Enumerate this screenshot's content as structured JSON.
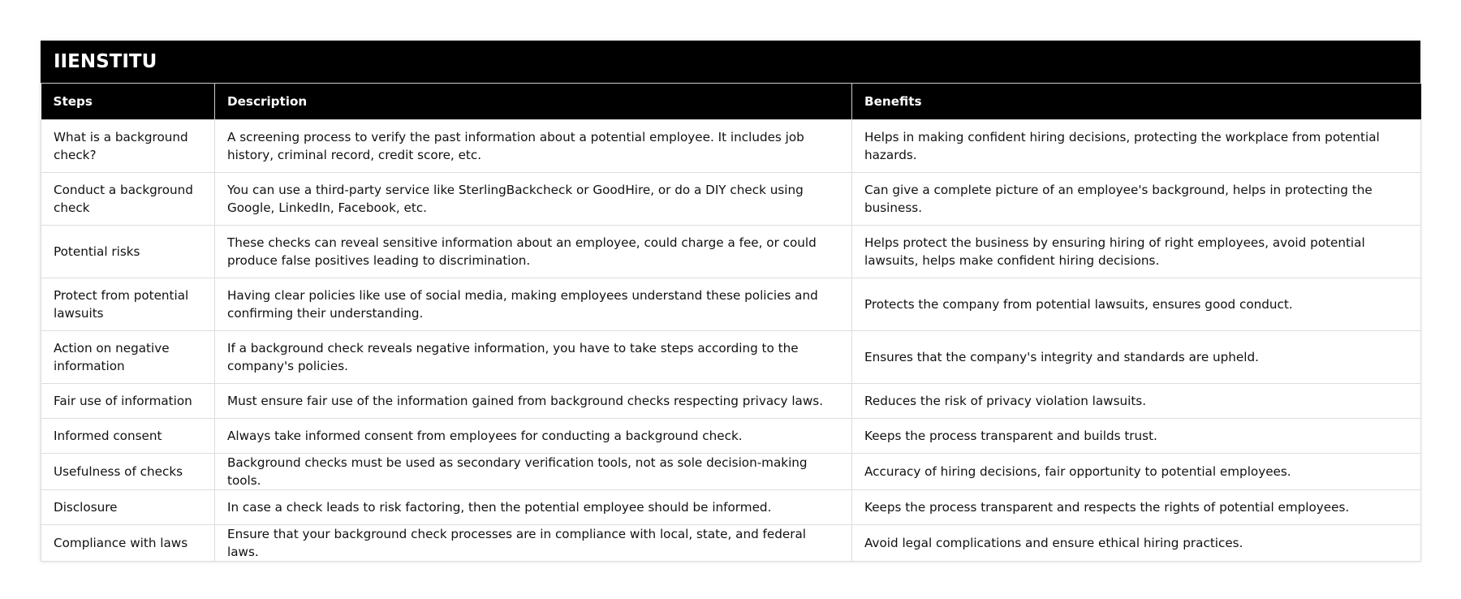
{
  "title": "IIENSTITU",
  "headers": [
    "Steps",
    "Description",
    "Benefits"
  ],
  "rows": [
    [
      "What is a background check?",
      "A screening process to verify the past information about a potential employee. It includes job history, criminal record, credit score, etc.",
      "Helps in making confident hiring decisions, protecting the workplace from potential hazards."
    ],
    [
      "Conduct a background check",
      "You can use a third-party service like SterlingBackcheck or GoodHire, or do a DIY check using Google, LinkedIn, Facebook, etc.",
      "Can give a complete picture of an employee's background, helps in protecting the business."
    ],
    [
      "Potential risks",
      "These checks can reveal sensitive information about an employee, could charge a fee, or could produce false positives leading to discrimination.",
      "Helps protect the business by ensuring hiring of right employees, avoid potential lawsuits, helps make confident hiring decisions."
    ],
    [
      "Protect from potential lawsuits",
      "Having clear policies like use of social media, making employees understand these policies and confirming their understanding.",
      "Protects the company from potential lawsuits, ensures good conduct."
    ],
    [
      "Action on negative information",
      "If a background check reveals negative information, you have to take steps according to the company's policies.",
      "Ensures that the company's integrity and standards are upheld."
    ],
    [
      "Fair use of information",
      "Must ensure fair use of the information gained from background checks respecting privacy laws.",
      "Reduces the risk of privacy violation lawsuits."
    ],
    [
      "Informed consent",
      "Always take informed consent from employees for conducting a background check.",
      "Keeps the process transparent and builds trust."
    ],
    [
      "Usefulness of checks",
      "Background checks must be used as secondary verification tools, not as sole decision-making tools.",
      "Accuracy of hiring decisions, fair opportunity to potential employees."
    ],
    [
      "Disclosure",
      "In case a check leads to risk factoring, then the potential employee should be informed.",
      "Keeps the process transparent and respects the rights of potential employees."
    ],
    [
      "Compliance with laws",
      "Ensure that your background check processes are in compliance with local, state, and federal laws.",
      "Avoid legal complications and ensure ethical hiring practices."
    ]
  ]
}
